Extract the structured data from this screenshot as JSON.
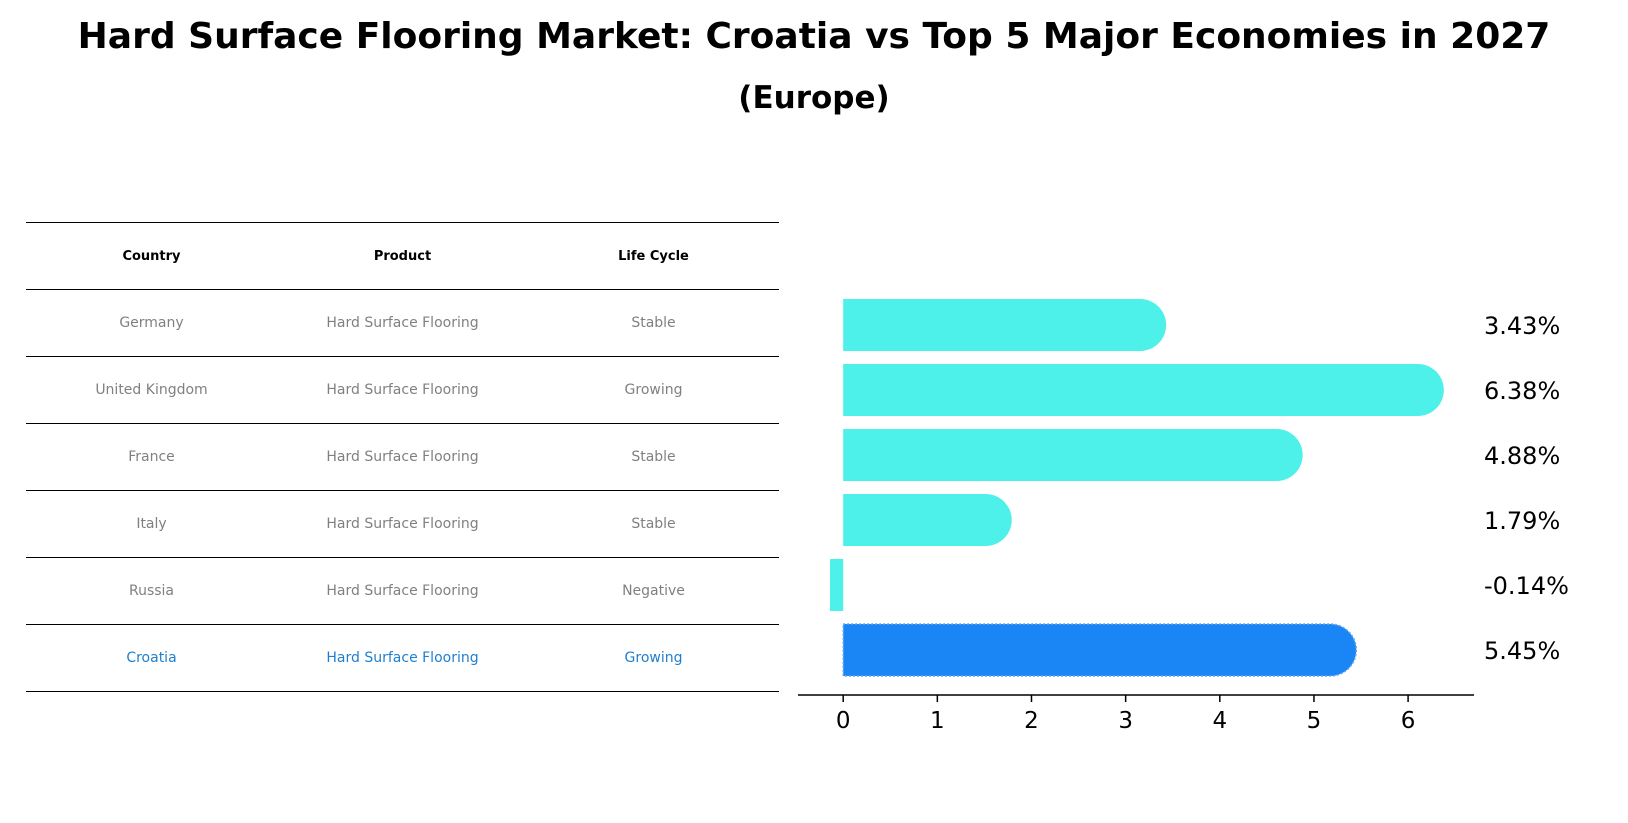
{
  "title": "Hard Surface Flooring Market: Croatia vs Top 5 Major Economies in 2027",
  "subtitle": "(Europe)",
  "table": {
    "headers": [
      "Country",
      "Product",
      "Life Cycle"
    ],
    "rows": [
      {
        "country": "Germany",
        "product": "Hard Surface Flooring",
        "life_cycle": "Stable"
      },
      {
        "country": "United Kingdom",
        "product": "Hard Surface Flooring",
        "life_cycle": "Growing"
      },
      {
        "country": "France",
        "product": "Hard Surface Flooring",
        "life_cycle": "Stable"
      },
      {
        "country": "Italy",
        "product": "Hard Surface Flooring",
        "life_cycle": "Stable"
      },
      {
        "country": "Russia",
        "product": "Hard Surface Flooring",
        "life_cycle": "Negative"
      },
      {
        "country": "Croatia",
        "product": "Hard Surface Flooring",
        "life_cycle": "Growing"
      }
    ]
  },
  "colors": {
    "bar": "#4ef0ea",
    "highlight_bar": "#1a85f5",
    "highlight_text": "#1f7fcf"
  },
  "chart_data": {
    "type": "bar",
    "orientation": "horizontal",
    "categories": [
      "Germany",
      "United Kingdom",
      "France",
      "Italy",
      "Russia",
      "Croatia"
    ],
    "values": [
      3.43,
      6.38,
      4.88,
      1.79,
      -0.14,
      5.45
    ],
    "value_labels": [
      "3.43%",
      "6.38%",
      "4.88%",
      "1.79%",
      "-0.14%",
      "5.45%"
    ],
    "highlight": "Croatia",
    "xticks": [
      "0",
      "1",
      "2",
      "3",
      "4",
      "5",
      "6"
    ],
    "xlim": [
      -0.48,
      6.7
    ],
    "xlabel": "",
    "ylabel": "",
    "title": "Hard Surface Flooring Market: Croatia vs Top 5 Major Economies in 2027"
  }
}
